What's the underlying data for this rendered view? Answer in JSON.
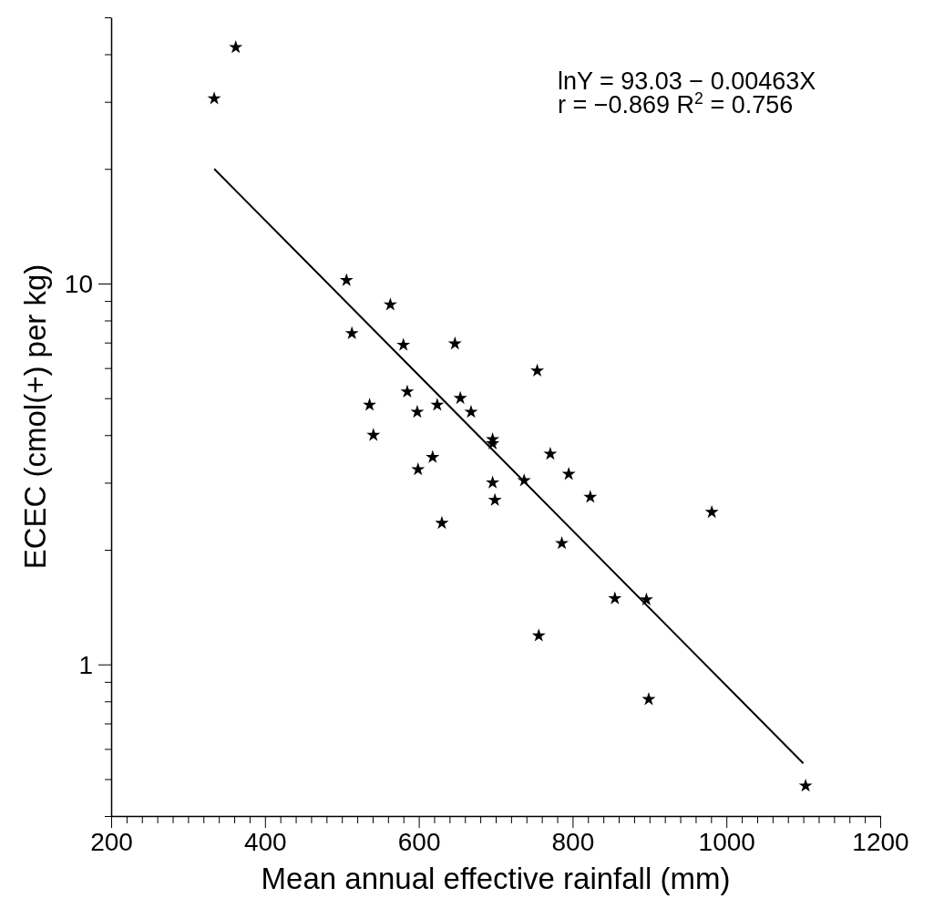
{
  "chart_data": {
    "type": "scatter",
    "xlabel": "Mean annual effective rainfall (mm)",
    "ylabel": "ECEC (cmol(+) per kg)",
    "annotations": [
      "lnY = 93.03 − 0.00463X",
      "r = −0.869 R$^{2}$ = 0.756"
    ],
    "log": "y",
    "xlim": [
      200,
      1200
    ],
    "xticks": [
      200,
      {
        "value": 220,
        "label": null
      },
      {
        "value": 240,
        "label": null
      },
      {
        "value": 260,
        "label": null
      },
      {
        "value": 280,
        "label": null
      },
      {
        "value": 300,
        "label": null
      },
      {
        "value": 320,
        "label": null
      },
      {
        "value": 340,
        "label": null
      },
      {
        "value": 360,
        "label": null
      },
      {
        "value": 380,
        "label": null
      },
      400,
      {
        "value": 420,
        "label": null
      },
      {
        "value": 440,
        "label": null
      },
      {
        "value": 460,
        "label": null
      },
      {
        "value": 480,
        "label": null
      },
      {
        "value": 500,
        "label": null
      },
      {
        "value": 520,
        "label": null
      },
      {
        "value": 540,
        "label": null
      },
      {
        "value": 560,
        "label": null
      },
      {
        "value": 580,
        "label": null
      },
      600,
      {
        "value": 620,
        "label": null
      },
      {
        "value": 640,
        "label": null
      },
      {
        "value": 660,
        "label": null
      },
      {
        "value": 680,
        "label": null
      },
      {
        "value": 700,
        "label": null
      },
      {
        "value": 720,
        "label": null
      },
      {
        "value": 740,
        "label": null
      },
      {
        "value": 760,
        "label": null
      },
      {
        "value": 780,
        "label": null
      },
      800,
      {
        "value": 820,
        "label": null
      },
      {
        "value": 840,
        "label": null
      },
      {
        "value": 860,
        "label": null
      },
      {
        "value": 880,
        "label": null
      },
      {
        "value": 900,
        "label": null
      },
      {
        "value": 920,
        "label": null
      },
      {
        "value": 940,
        "label": null
      },
      {
        "value": 960,
        "label": null
      },
      {
        "value": 980,
        "label": null
      },
      1000,
      {
        "value": 1020,
        "label": null
      },
      {
        "value": 1040,
        "label": null
      },
      {
        "value": 1060,
        "label": null
      },
      {
        "value": 1080,
        "label": null
      },
      {
        "value": 1100,
        "label": null
      },
      {
        "value": 1120,
        "label": null
      },
      {
        "value": 1140,
        "label": null
      },
      {
        "value": 1160,
        "label": null
      },
      {
        "value": 1180,
        "label": null
      },
      1200
    ],
    "ylim": [
      0.4,
      50
    ],
    "yticks": [
      {
        "value": 0.4,
        "label": null
      },
      {
        "value": 0.5,
        "label": null
      },
      {
        "value": 0.6,
        "label": null
      },
      {
        "value": 0.7,
        "label": null
      },
      {
        "value": 0.8,
        "label": null
      },
      {
        "value": 0.9,
        "label": null
      },
      1,
      {
        "value": 2,
        "label": null
      },
      {
        "value": 3,
        "label": null
      },
      {
        "value": 4,
        "label": null
      },
      {
        "value": 5,
        "label": null
      },
      {
        "value": 6,
        "label": null
      },
      {
        "value": 7,
        "label": null
      },
      {
        "value": 8,
        "label": null
      },
      {
        "value": 9,
        "label": null
      },
      10,
      {
        "value": 20,
        "label": null
      },
      {
        "value": 30,
        "label": null
      },
      {
        "value": 40,
        "label": null
      },
      {
        "value": 50,
        "label": null
      }
    ],
    "series": [
      {
        "color": "#000000",
        "marker": "star",
        "x": [
          334,
          362,
          506,
          513,
          563,
          580,
          536,
          541,
          585,
          598,
          624,
          599,
          618,
          630,
          647,
          654,
          668,
          696,
          696,
          696,
          699,
          737,
          754,
          771,
          795,
          786,
          823,
          756,
          855,
          896,
          899,
          981,
          1103
        ],
        "values": [
          30.6,
          41.7,
          10.2,
          7.4,
          8.8,
          6.9,
          4.8,
          4.0,
          5.2,
          4.6,
          4.8,
          3.25,
          3.5,
          2.35,
          6.95,
          5.0,
          4.6,
          3.9,
          3.8,
          3.0,
          2.7,
          3.04,
          5.9,
          3.57,
          3.16,
          2.08,
          2.75,
          1.19,
          1.49,
          1.48,
          0.81,
          2.51,
          0.48
        ]
      },
      {
        "type": "line",
        "color": "#000000",
        "line_style": "solid",
        "x": [
          334,
          1100
        ],
        "values": [
          20.0,
          0.55
        ]
      }
    ]
  }
}
